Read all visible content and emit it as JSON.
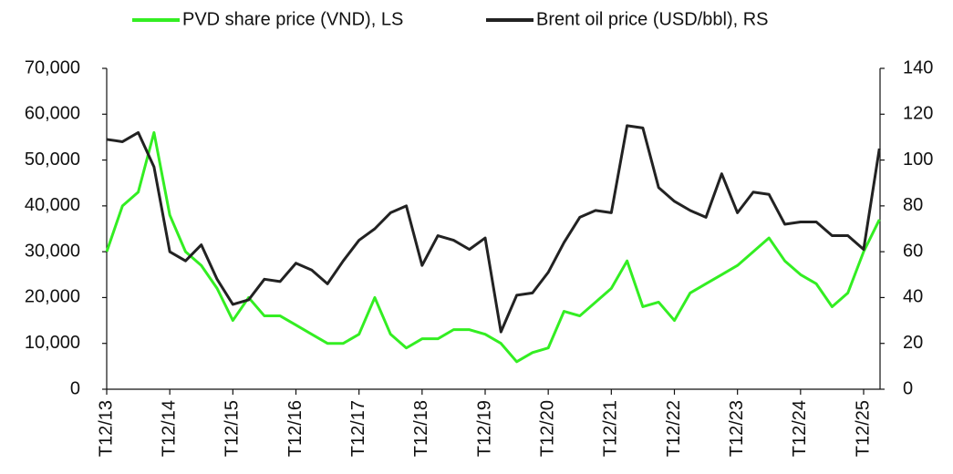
{
  "chart_data": {
    "type": "line",
    "categories": [
      "T12/13",
      null,
      null,
      null,
      "T12/14",
      null,
      null,
      null,
      "T12/15",
      null,
      null,
      null,
      "T12/16",
      null,
      null,
      null,
      "T12/17",
      null,
      null,
      null,
      "T12/18",
      null,
      null,
      null,
      "T12/19",
      null,
      null,
      null,
      "T12/20",
      null,
      null,
      null,
      "T12/21",
      null,
      null,
      null,
      "T12/22",
      null,
      null,
      null,
      "T12/23",
      null,
      null,
      null,
      "T12/24",
      null,
      null,
      null,
      "T12/25",
      null
    ],
    "series": [
      {
        "name": "PVD share price (VND), LS",
        "color": "#33ee22",
        "values": [
          30000,
          40000,
          43000,
          56000,
          38000,
          30000,
          27000,
          22000,
          15000,
          20000,
          16000,
          16000,
          14000,
          12000,
          10000,
          10000,
          12000,
          20000,
          12000,
          9000,
          11000,
          11000,
          13000,
          13000,
          12000,
          10000,
          6000,
          8000,
          9000,
          17000,
          16000,
          19000,
          22000,
          28000,
          18000,
          19000,
          15000,
          21000,
          23000,
          25000,
          27000,
          30000,
          33000,
          28000,
          25000,
          23000,
          18000,
          21000,
          30000,
          37000
        ]
      },
      {
        "name": "Brent oil price (USD/bbl), RS",
        "color": "#222222",
        "axis": "y2",
        "values": [
          109,
          108,
          112,
          97,
          60,
          56,
          63,
          48,
          37,
          39,
          48,
          47,
          55,
          52,
          46,
          56,
          65,
          70,
          77,
          80,
          54,
          67,
          65,
          61,
          66,
          25,
          41,
          42,
          51,
          64,
          75,
          78,
          77,
          115,
          114,
          88,
          82,
          78,
          75,
          94,
          77,
          86,
          85,
          72,
          73,
          73,
          67,
          67,
          61,
          105
        ]
      }
    ],
    "ylim": [
      0,
      70000
    ],
    "yticks": [
      0,
      {
        "value": 10000,
        "label": "10,000"
      },
      {
        "value": 20000,
        "label": "20,000"
      },
      {
        "value": 30000,
        "label": "30,000"
      },
      {
        "value": 40000,
        "label": "40,000"
      },
      {
        "value": 50000,
        "label": "50,000"
      },
      {
        "value": 60000,
        "label": "60,000"
      },
      {
        "value": 70000,
        "label": "70,000"
      }
    ],
    "y2lim": [
      0,
      140
    ],
    "y2ticks": [
      0,
      20,
      40,
      60,
      80,
      100,
      120,
      140
    ],
    "legend": "top"
  }
}
